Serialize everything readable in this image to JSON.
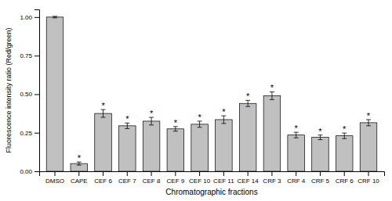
{
  "chart_data": {
    "type": "bar",
    "categories": [
      "DMSO",
      "CAPE",
      "CEF 6",
      "CEF 7",
      "CEF 8",
      "CEF 9",
      "CEF 10",
      "CEF 11",
      "CEF 14",
      "CRF 3",
      "CRF 4",
      "CRF 5",
      "CRF 6",
      "CRF 10"
    ],
    "values": [
      1.0,
      0.05,
      0.375,
      0.295,
      0.325,
      0.275,
      0.305,
      0.335,
      0.44,
      0.49,
      0.235,
      0.22,
      0.23,
      0.315
    ],
    "errors": [
      0.005,
      0.01,
      0.025,
      0.018,
      0.025,
      0.015,
      0.02,
      0.025,
      0.02,
      0.025,
      0.018,
      0.015,
      0.018,
      0.02
    ],
    "color": "#c0c0c0",
    "xlabel": "Chromatographic fractions",
    "ylabel": "Fluorescence intensity ratio (Red/green)",
    "ylim": [
      0,
      1.05
    ],
    "yticks": [
      {
        "value": 0.0,
        "label": "0.00"
      },
      {
        "value": 0.25,
        "label": "0.25"
      },
      {
        "value": 0.5,
        "label": "0.50"
      },
      {
        "value": 0.75,
        "label": "0.75"
      },
      {
        "value": 1.0,
        "label": "1.00"
      }
    ],
    "grid": false,
    "annotations": [
      {
        "text": "*",
        "category": "CAPE"
      },
      {
        "text": "*",
        "category": "CEF 6"
      },
      {
        "text": "*",
        "category": "CEF 7"
      },
      {
        "text": "*",
        "category": "CEF 8"
      },
      {
        "text": "*",
        "category": "CEF 9"
      },
      {
        "text": "*",
        "category": "CEF 10"
      },
      {
        "text": "*",
        "category": "CEF 11"
      },
      {
        "text": "*",
        "category": "CEF 14"
      },
      {
        "text": "*",
        "category": "CRF 3"
      },
      {
        "text": "*",
        "category": "CRF 4"
      },
      {
        "text": "*",
        "category": "CRF 5"
      },
      {
        "text": "*",
        "category": "CRF 6"
      },
      {
        "text": "*",
        "category": "CRF 10"
      }
    ]
  }
}
